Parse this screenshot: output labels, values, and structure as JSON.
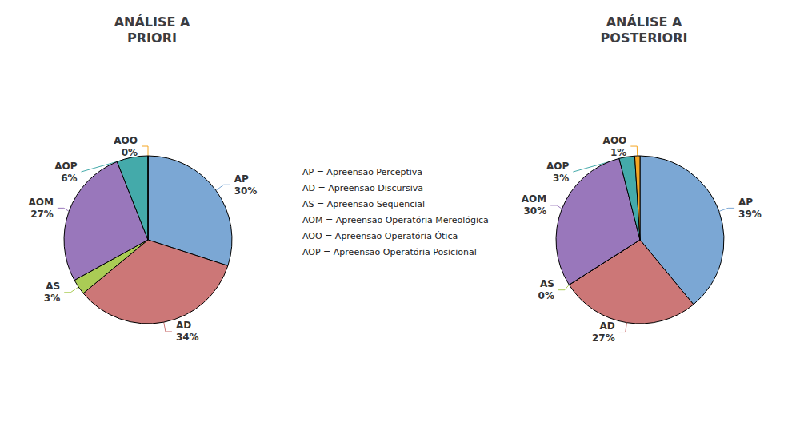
{
  "chart_data": [
    {
      "type": "pie",
      "title": "ANÁLISE A\nPRIORI",
      "categories": [
        "AP",
        "AD",
        "AS",
        "AOM",
        "AOP",
        "AOO"
      ],
      "values": [
        30,
        34,
        3,
        27,
        6,
        0
      ],
      "value_labels": [
        "30%",
        "34%",
        "3%",
        "27%",
        "6%",
        "0%"
      ],
      "colors": [
        "#7BA7D4",
        "#CC7777",
        "#AACC55",
        "#9977BB",
        "#44AAAA",
        "#F5A623"
      ],
      "data_labels": true,
      "annotations": [
        "AP = Apreensão Perceptiva",
        "AD = Apreensão Discursiva",
        "AS = Apreensão Sequencial",
        "AOM = Apreensão Operatória Mereológica",
        "AOO = Apreensão Operatória Ótica",
        "AOP = Apreensão Operatória Posicional"
      ]
    },
    {
      "type": "pie",
      "title": "ANÁLISE A\nPOSTERIORI",
      "categories": [
        "AP",
        "AD",
        "AS",
        "AOM",
        "AOP",
        "AOO"
      ],
      "values": [
        39,
        27,
        0,
        30,
        3,
        1
      ],
      "value_labels": [
        "39%",
        "27%",
        "0%",
        "30%",
        "3%",
        "1%"
      ],
      "colors": [
        "#7BA7D4",
        "#CC7777",
        "#AACC55",
        "#9977BB",
        "#44AAAA",
        "#F5A623"
      ],
      "data_labels": true
    }
  ]
}
